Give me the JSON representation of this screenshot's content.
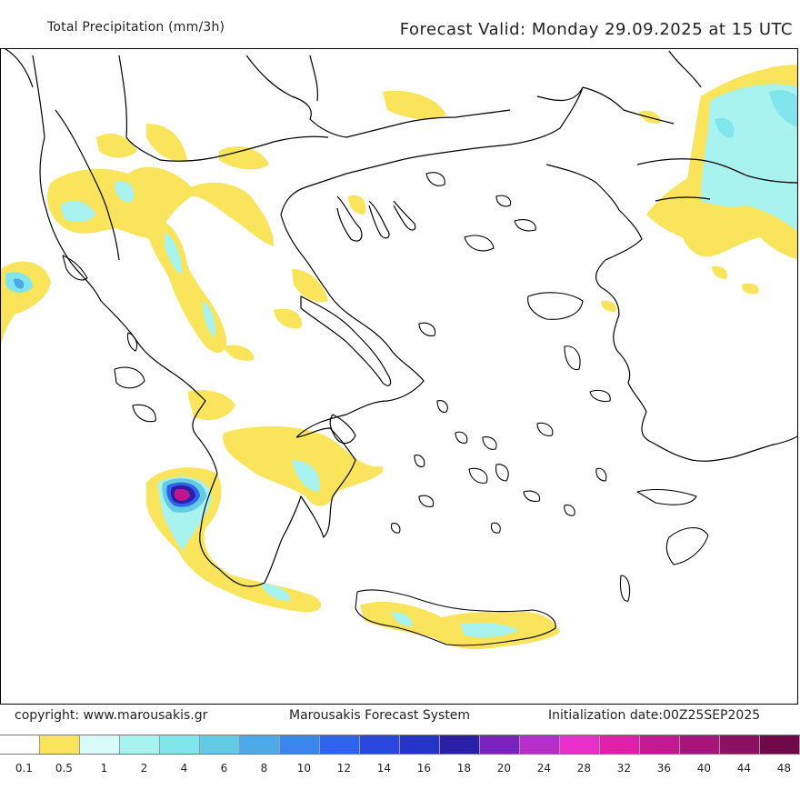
{
  "header": {
    "left_title": "Total Precipitation (mm/3h)",
    "right_title": "Forecast Valid:  Monday 29.09.2025 at 15 UTC"
  },
  "footer": {
    "copyright": "copyright: www.marousakis.gr",
    "system": "Marousakis Forecast System",
    "init_date": "Initialization date:00Z25SEP2025"
  },
  "legend": {
    "labels": [
      "0.1",
      "0.5",
      "1",
      "2",
      "4",
      "6",
      "8",
      "10",
      "12",
      "14",
      "16",
      "18",
      "20",
      "24",
      "28",
      "32",
      "36",
      "40",
      "44",
      "48"
    ],
    "colors": [
      "#ffffff",
      "#f9e45b",
      "#d9fbf9",
      "#a8f3ef",
      "#80e6ec",
      "#63cbe4",
      "#4da9e8",
      "#3a86ee",
      "#2f63ef",
      "#2a47e0",
      "#2633c8",
      "#2a1fa8",
      "#7a22c0",
      "#b82ec8",
      "#e92ec8",
      "#e020a8",
      "#c41890",
      "#a81478",
      "#8e1062",
      "#6e0a4a"
    ]
  },
  "map": {
    "region": "Greece",
    "max_value_marker_color": "#c4148c",
    "coast_color": "#000000"
  }
}
